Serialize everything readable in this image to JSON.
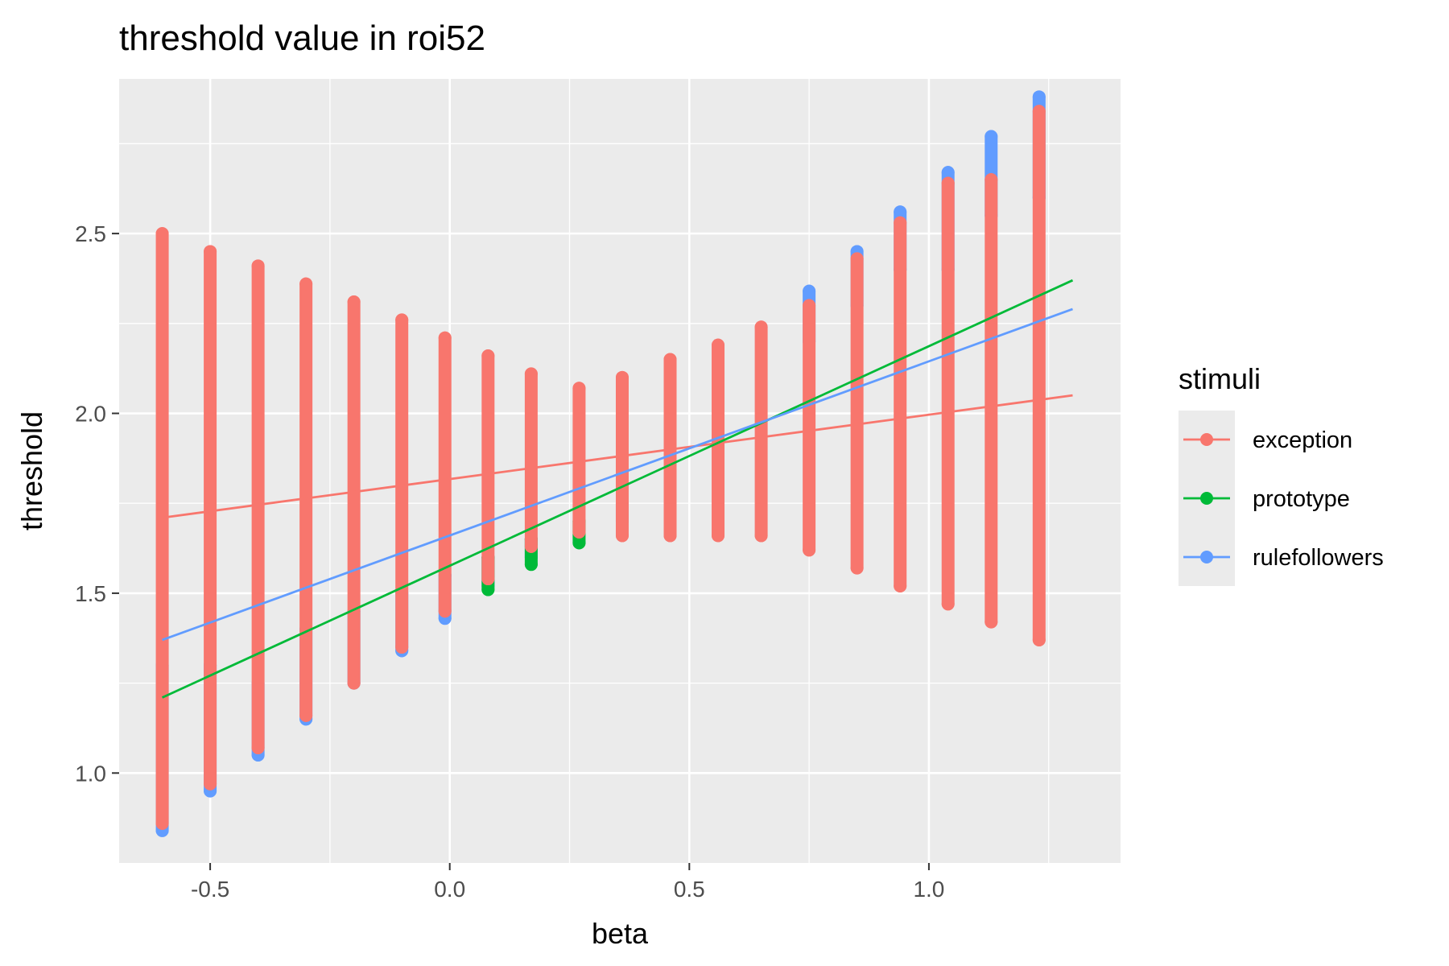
{
  "chart_data": {
    "type": "scatter",
    "title": "threshold value in roi52",
    "xlabel": "beta",
    "ylabel": "threshold",
    "xlim": [
      -0.69,
      1.4
    ],
    "ylim": [
      0.75,
      2.93
    ],
    "x_ticks": [
      -0.5,
      0.0,
      0.5,
      1.0
    ],
    "y_ticks": [
      1.0,
      1.5,
      2.0,
      2.5
    ],
    "x_tick_labels": [
      "-0.5",
      "0.0",
      "0.5",
      "1.0"
    ],
    "y_tick_labels": [
      "1.0",
      "1.5",
      "2.0",
      "2.5"
    ],
    "grid": true,
    "legend": {
      "title": "stimuli",
      "position": "right"
    },
    "x_levels": [
      -0.6,
      -0.5,
      -0.4,
      -0.3,
      -0.2,
      -0.1,
      -0.01,
      0.08,
      0.17,
      0.27,
      0.36,
      0.46,
      0.56,
      0.65,
      0.75,
      0.85,
      0.94,
      1.04,
      1.13,
      1.23
    ],
    "series": [
      {
        "name": "exception",
        "color": "#F8766D",
        "line": {
          "x": [
            -0.6,
            1.3
          ],
          "y": [
            1.71,
            2.05
          ]
        },
        "columns": [
          {
            "x": -0.6,
            "ymin": 0.86,
            "ymax": 2.5
          },
          {
            "x": -0.5,
            "ymin": 0.97,
            "ymax": 2.45
          },
          {
            "x": -0.4,
            "ymin": 1.07,
            "ymax": 2.41
          },
          {
            "x": -0.3,
            "ymin": 1.16,
            "ymax": 2.36
          },
          {
            "x": -0.2,
            "ymin": 1.25,
            "ymax": 2.31
          },
          {
            "x": -0.1,
            "ymin": 1.35,
            "ymax": 2.26
          },
          {
            "x": -0.01,
            "ymin": 1.45,
            "ymax": 2.21
          },
          {
            "x": 0.08,
            "ymin": 1.54,
            "ymax": 2.16
          },
          {
            "x": 0.17,
            "ymin": 1.63,
            "ymax": 2.11
          },
          {
            "x": 0.27,
            "ymin": 1.67,
            "ymax": 2.07
          },
          {
            "x": 0.36,
            "ymin": 1.66,
            "ymax": 2.1
          },
          {
            "x": 0.46,
            "ymin": 1.66,
            "ymax": 2.15
          },
          {
            "x": 0.56,
            "ymin": 1.66,
            "ymax": 2.19
          },
          {
            "x": 0.65,
            "ymin": 1.66,
            "ymax": 2.24
          },
          {
            "x": 0.75,
            "ymin": 1.62,
            "ymax": 2.3
          },
          {
            "x": 0.85,
            "ymin": 1.57,
            "ymax": 2.43
          },
          {
            "x": 0.94,
            "ymin": 1.52,
            "ymax": 2.53
          },
          {
            "x": 1.04,
            "ymin": 1.47,
            "ymax": 2.64
          },
          {
            "x": 1.13,
            "ymin": 1.42,
            "ymax": 2.65
          },
          {
            "x": 1.23,
            "ymin": 1.37,
            "ymax": 2.84
          }
        ]
      },
      {
        "name": "prototype",
        "color": "#00BA38",
        "line": {
          "x": [
            -0.6,
            1.3
          ],
          "y": [
            1.21,
            2.37
          ]
        },
        "columns": [
          {
            "x": 0.08,
            "ymin": 1.51,
            "ymax": 1.6
          },
          {
            "x": 0.17,
            "ymin": 1.58,
            "ymax": 1.65
          },
          {
            "x": 0.27,
            "ymin": 1.64,
            "ymax": 1.7
          }
        ]
      },
      {
        "name": "rulefollowers",
        "color": "#619CFF",
        "line": {
          "x": [
            -0.6,
            1.3
          ],
          "y": [
            1.37,
            2.29
          ]
        },
        "columns": [
          {
            "x": -0.6,
            "ymin": 0.84,
            "ymax": 1.3
          },
          {
            "x": -0.5,
            "ymin": 0.95,
            "ymax": 1.3
          },
          {
            "x": -0.4,
            "ymin": 1.05,
            "ymax": 1.25
          },
          {
            "x": -0.3,
            "ymin": 1.15,
            "ymax": 1.4
          },
          {
            "x": -0.2,
            "ymin": 1.25,
            "ymax": 1.45
          },
          {
            "x": -0.1,
            "ymin": 1.34,
            "ymax": 1.5
          },
          {
            "x": -0.01,
            "ymin": 1.43,
            "ymax": 1.55
          },
          {
            "x": 0.08,
            "ymin": 1.52,
            "ymax": 1.6
          },
          {
            "x": 0.17,
            "ymin": 1.6,
            "ymax": 1.65
          },
          {
            "x": 0.36,
            "ymin": 1.7,
            "ymax": 1.75
          },
          {
            "x": 0.75,
            "ymin": 2.2,
            "ymax": 2.34
          },
          {
            "x": 0.85,
            "ymin": 2.3,
            "ymax": 2.45
          },
          {
            "x": 0.94,
            "ymin": 2.4,
            "ymax": 2.56
          },
          {
            "x": 1.04,
            "ymin": 2.4,
            "ymax": 2.67
          },
          {
            "x": 1.13,
            "ymin": 2.55,
            "ymax": 2.77
          },
          {
            "x": 1.23,
            "ymin": 2.6,
            "ymax": 2.88
          }
        ]
      }
    ]
  }
}
